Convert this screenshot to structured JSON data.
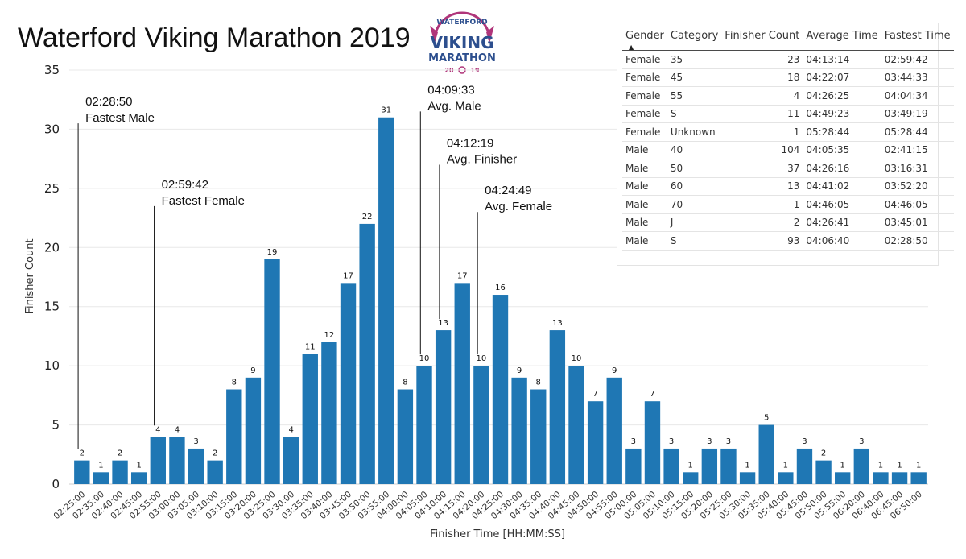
{
  "title": "Waterford Viking Marathon 2019",
  "logo": {
    "top": "WATERFORD",
    "line1": "VIKING",
    "line2": "MARATHON",
    "year_left": "20",
    "year_right": "19"
  },
  "colors": {
    "bar": "#1f77b4",
    "grid": "#e8e8e8",
    "logo_blue": "#2d4f8e",
    "logo_pink": "#b0357a"
  },
  "chart_data": {
    "type": "bar",
    "xlabel": "Finisher Time [HH:MM:SS]",
    "ylabel": "Finisher Count",
    "ylim": [
      0,
      35
    ],
    "yticks": [
      0,
      5,
      10,
      15,
      20,
      25,
      30,
      35
    ],
    "grid": true,
    "categories": [
      "02:25:00",
      "02:35:00",
      "02:40:00",
      "02:45:00",
      "02:55:00",
      "03:00:00",
      "03:05:00",
      "03:10:00",
      "03:15:00",
      "03:20:00",
      "03:25:00",
      "03:30:00",
      "03:35:00",
      "03:40:00",
      "03:45:00",
      "03:50:00",
      "03:55:00",
      "04:00:00",
      "04:05:00",
      "04:10:00",
      "04:15:00",
      "04:20:00",
      "04:25:00",
      "04:30:00",
      "04:35:00",
      "04:40:00",
      "04:45:00",
      "04:50:00",
      "04:55:00",
      "05:00:00",
      "05:05:00",
      "05:10:00",
      "05:15:00",
      "05:20:00",
      "05:25:00",
      "05:30:00",
      "05:35:00",
      "05:40:00",
      "05:45:00",
      "05:50:00",
      "05:55:00",
      "06:20:00",
      "06:40:00",
      "06:45:00",
      "06:50:00"
    ],
    "values": [
      2,
      1,
      2,
      1,
      4,
      4,
      3,
      2,
      8,
      9,
      19,
      4,
      11,
      12,
      17,
      22,
      31,
      8,
      10,
      13,
      17,
      10,
      16,
      9,
      8,
      13,
      10,
      7,
      9,
      3,
      7,
      3,
      1,
      3,
      3,
      1,
      5,
      1,
      3,
      2,
      1,
      3,
      1,
      1,
      1
    ],
    "annotations": [
      {
        "time": "02:28:50",
        "label": "Fastest Male",
        "at": "02:25:00",
        "level": 30.5
      },
      {
        "time": "02:59:42",
        "label": "Fastest Female",
        "at": "02:55:00",
        "level": 23.5
      },
      {
        "time": "04:09:33",
        "label": "Avg. Male",
        "at": "04:05:00",
        "level": 31.5
      },
      {
        "time": "04:12:19",
        "label": "Avg. Finisher",
        "at": "04:10:00",
        "level": 27.0
      },
      {
        "time": "04:24:49",
        "label": "Avg. Female",
        "at": "04:20:00",
        "level": 23.0
      }
    ]
  },
  "table": {
    "columns": [
      "Gender",
      "Category",
      "Finisher Count",
      "Average Time",
      "Fastest Time"
    ],
    "sort_indicator": "▲",
    "rows": [
      [
        "Female",
        "35",
        "23",
        "04:13:14",
        "02:59:42"
      ],
      [
        "Female",
        "45",
        "18",
        "04:22:07",
        "03:44:33"
      ],
      [
        "Female",
        "55",
        "4",
        "04:26:25",
        "04:04:34"
      ],
      [
        "Female",
        "S",
        "11",
        "04:49:23",
        "03:49:19"
      ],
      [
        "Female",
        "Unknown",
        "1",
        "05:28:44",
        "05:28:44"
      ],
      [
        "Male",
        "40",
        "104",
        "04:05:35",
        "02:41:15"
      ],
      [
        "Male",
        "50",
        "37",
        "04:26:16",
        "03:16:31"
      ],
      [
        "Male",
        "60",
        "13",
        "04:41:02",
        "03:52:20"
      ],
      [
        "Male",
        "70",
        "1",
        "04:46:05",
        "04:46:05"
      ],
      [
        "Male",
        "J",
        "2",
        "04:26:41",
        "03:45:01"
      ],
      [
        "Male",
        "S",
        "93",
        "04:06:40",
        "02:28:50"
      ]
    ]
  }
}
